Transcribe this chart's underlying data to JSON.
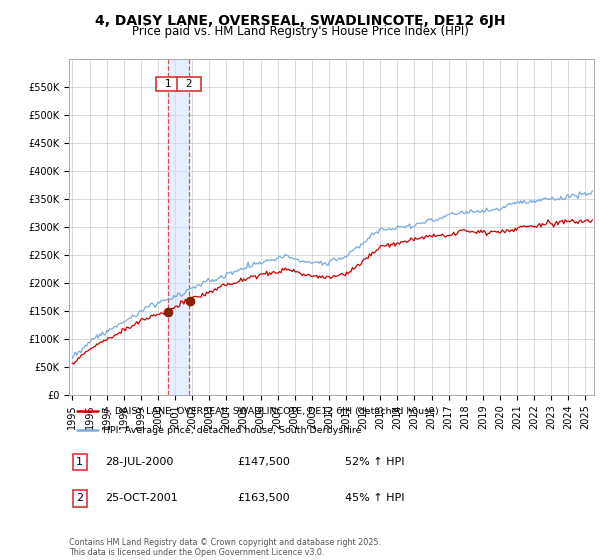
{
  "title": "4, DAISY LANE, OVERSEAL, SWADLINCOTE, DE12 6JH",
  "subtitle": "Price paid vs. HM Land Registry's House Price Index (HPI)",
  "ylabel_ticks": [
    "£0",
    "£50K",
    "£100K",
    "£150K",
    "£200K",
    "£250K",
    "£300K",
    "£350K",
    "£400K",
    "£450K",
    "£500K",
    "£550K"
  ],
  "ytick_values": [
    0,
    50000,
    100000,
    150000,
    200000,
    250000,
    300000,
    350000,
    400000,
    450000,
    500000,
    550000
  ],
  "ylim": [
    0,
    600000
  ],
  "xlim_start": 1994.8,
  "xlim_end": 2025.5,
  "purchase1_date": 2000.57,
  "purchase1_price": 147500,
  "purchase2_date": 2001.81,
  "purchase2_price": 163500,
  "red_line_color": "#cc0000",
  "blue_line_color": "#7aaadd",
  "marker_color": "#882200",
  "vline_color": "#dd3333",
  "shade_color": "#cce0ff",
  "grid_color": "#cccccc",
  "bg_color": "#ffffff",
  "legend_line1": "4, DAISY LANE, OVERSEAL, SWADLINCOTE, DE12 6JH (detached house)",
  "legend_line2": "HPI: Average price, detached house, South Derbyshire",
  "table_row1": [
    "1",
    "28-JUL-2000",
    "£147,500",
    "52% ↑ HPI"
  ],
  "table_row2": [
    "2",
    "25-OCT-2001",
    "£163,500",
    "45% ↑ HPI"
  ],
  "footnote": "Contains HM Land Registry data © Crown copyright and database right 2025.\nThis data is licensed under the Open Government Licence v3.0.",
  "title_fontsize": 10,
  "subtitle_fontsize": 8.5,
  "tick_fontsize": 7,
  "label_fontsize": 8
}
